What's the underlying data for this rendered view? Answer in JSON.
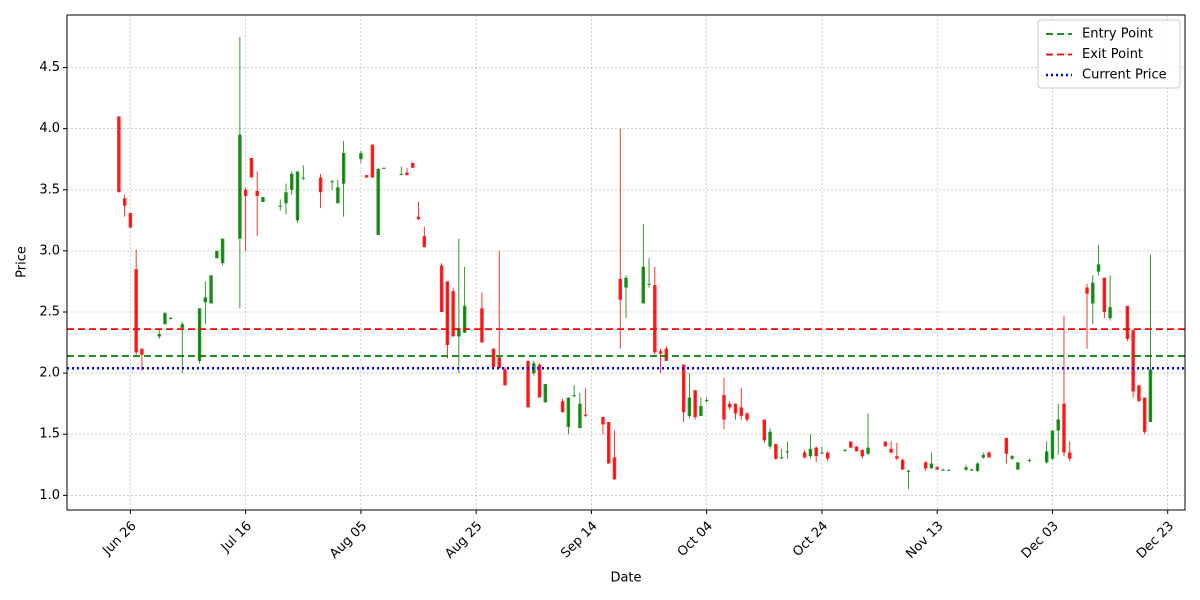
{
  "chart_data": {
    "type": "candlestick",
    "x_label": "Date",
    "y_label": "Price",
    "xlim": [
      "Jun 15",
      "Dec 26"
    ],
    "xticks": [
      "Jun 26",
      "Jul 16",
      "Aug 05",
      "Aug 25",
      "Sep 14",
      "Oct 04",
      "Oct 24",
      "Nov 13",
      "Dec 03",
      "Dec 23"
    ],
    "ylim": [
      0.88,
      4.93
    ],
    "yticks": [
      {
        "value": 1,
        "label": "1.0"
      },
      {
        "value": 1.5,
        "label": "1.5"
      },
      {
        "value": 2,
        "label": "2.0"
      },
      {
        "value": 2.5,
        "label": "2.5"
      },
      {
        "value": 3,
        "label": "3.0"
      },
      {
        "value": 3.5,
        "label": "3.5"
      },
      {
        "value": 4,
        "label": "4.0"
      },
      {
        "value": 4.5,
        "label": "4.5"
      }
    ],
    "grid": true,
    "legend": "upper right",
    "up_color": "green",
    "down_color": "red",
    "x": [
      "Jun 24",
      "Jun 25",
      "Jun 26",
      "Jun 27",
      "Jun 28",
      "Jul 01",
      "Jul 02",
      "Jul 03",
      "Jul 05",
      "Jul 08",
      "Jul 09",
      "Jul 10",
      "Jul 11",
      "Jul 12",
      "Jul 15",
      "Jul 16",
      "Jul 17",
      "Jul 18",
      "Jul 19",
      "Jul 22",
      "Jul 23",
      "Jul 24",
      "Jul 25",
      "Jul 26",
      "Jul 29",
      "Jul 31",
      "Aug 01",
      "Aug 02",
      "Aug 05",
      "Aug 06",
      "Aug 07",
      "Aug 08",
      "Aug 09",
      "Aug 12",
      "Aug 13",
      "Aug 14",
      "Aug 15",
      "Aug 16",
      "Aug 19",
      "Aug 20",
      "Aug 21",
      "Aug 22",
      "Aug 23",
      "Aug 26",
      "Aug 28",
      "Aug 29",
      "Aug 30",
      "Sep 03",
      "Sep 04",
      "Sep 05",
      "Sep 06",
      "Sep 09",
      "Sep 10",
      "Sep 11",
      "Sep 12",
      "Sep 13",
      "Sep 16",
      "Sep 17",
      "Sep 18",
      "Sep 19",
      "Sep 20",
      "Sep 23",
      "Sep 24",
      "Sep 25",
      "Sep 26",
      "Sep 27",
      "Sep 30",
      "Oct 01",
      "Oct 02",
      "Oct 03",
      "Oct 04",
      "Oct 07",
      "Oct 08",
      "Oct 09",
      "Oct 10",
      "Oct 11",
      "Oct 14",
      "Oct 15",
      "Oct 16",
      "Oct 17",
      "Oct 18",
      "Oct 21",
      "Oct 22",
      "Oct 23",
      "Oct 24",
      "Oct 25",
      "Oct 28",
      "Oct 29",
      "Oct 30",
      "Oct 31",
      "Nov 01",
      "Nov 04",
      "Nov 05",
      "Nov 06",
      "Nov 07",
      "Nov 08",
      "Nov 11",
      "Nov 12",
      "Nov 13",
      "Nov 14",
      "Nov 15",
      "Nov 18",
      "Nov 19",
      "Nov 20",
      "Nov 21",
      "Nov 22",
      "Nov 25",
      "Nov 26",
      "Nov 27",
      "Nov 29",
      "Dec 02",
      "Dec 03",
      "Dec 04",
      "Dec 05",
      "Dec 06",
      "Dec 09",
      "Dec 10",
      "Dec 11",
      "Dec 12",
      "Dec 13",
      "Dec 16",
      "Dec 17",
      "Dec 18",
      "Dec 19",
      "Dec 20"
    ],
    "open": [
      4.1,
      3.43,
      3.31,
      2.85,
      2.2,
      2.3,
      2.4,
      2.45,
      2.37,
      2.1,
      2.58,
      2.57,
      2.94,
      2.9,
      3.1,
      3.5,
      3.76,
      3.49,
      3.4,
      3.37,
      3.39,
      3.5,
      3.25,
      3.6,
      3.6,
      3.57,
      3.39,
      3.55,
      3.75,
      3.62,
      3.87,
      3.13,
      3.68,
      3.63,
      3.64,
      3.72,
      3.28,
      3.12,
      2.88,
      2.75,
      2.67,
      2.3,
      2.33,
      2.53,
      2.2,
      2.13,
      2.03,
      2.1,
      2.0,
      2.07,
      1.76,
      1.77,
      1.56,
      1.82,
      1.55,
      1.66,
      1.64,
      1.6,
      1.31,
      2.77,
      2.7,
      2.57,
      2.73,
      2.72,
      2.18,
      2.2,
      2.07,
      1.65,
      1.86,
      1.65,
      1.78,
      1.82,
      1.75,
      1.75,
      1.72,
      1.67,
      1.62,
      1.4,
      1.42,
      1.31,
      1.36,
      1.35,
      1.32,
      1.39,
      1.35,
      1.35,
      1.37,
      1.44,
      1.4,
      1.37,
      1.34,
      1.44,
      1.38,
      1.32,
      1.29,
      1.2,
      1.27,
      1.22,
      1.23,
      1.21,
      1.21,
      1.21,
      1.21,
      1.2,
      1.31,
      1.35,
      1.47,
      1.3,
      1.21,
      1.29,
      1.27,
      1.3,
      1.53,
      1.75,
      1.35,
      2.7,
      2.57,
      2.83,
      2.78,
      2.45,
      2.55,
      2.35,
      1.9,
      1.8,
      1.6
    ],
    "high": [
      4.1,
      3.46,
      3.31,
      3.01,
      2.2,
      2.36,
      2.5,
      2.46,
      2.42,
      2.53,
      2.75,
      2.8,
      3.0,
      3.1,
      4.75,
      3.52,
      3.76,
      3.65,
      3.44,
      3.42,
      3.55,
      3.65,
      3.65,
      3.7,
      3.63,
      3.58,
      3.58,
      3.9,
      3.82,
      3.62,
      3.87,
      3.68,
      3.68,
      3.69,
      3.68,
      3.72,
      3.4,
      3.2,
      2.9,
      2.75,
      2.7,
      3.1,
      2.87,
      2.66,
      2.2,
      3.0,
      2.05,
      2.1,
      2.1,
      2.08,
      1.91,
      1.79,
      1.8,
      1.9,
      1.84,
      1.88,
      1.64,
      1.6,
      1.53,
      4.0,
      2.8,
      3.22,
      2.94,
      2.87,
      2.2,
      2.22,
      2.07,
      2.0,
      1.86,
      1.8,
      1.8,
      1.96,
      1.77,
      1.75,
      1.88,
      1.68,
      1.62,
      1.55,
      1.42,
      1.38,
      1.44,
      1.37,
      1.5,
      1.4,
      1.4,
      1.36,
      1.38,
      1.44,
      1.4,
      1.38,
      1.67,
      1.44,
      1.44,
      1.43,
      1.3,
      1.21,
      1.28,
      1.35,
      1.24,
      1.22,
      1.21,
      1.25,
      1.22,
      1.27,
      1.35,
      1.36,
      1.47,
      1.33,
      1.27,
      1.3,
      1.44,
      1.53,
      1.75,
      2.47,
      1.44,
      2.73,
      2.8,
      3.05,
      2.78,
      2.8,
      2.55,
      2.36,
      1.9,
      1.8,
      2.97
    ],
    "low": [
      3.48,
      3.28,
      3.19,
      2.15,
      2.02,
      2.28,
      2.4,
      2.44,
      2.0,
      2.08,
      2.4,
      2.57,
      2.94,
      2.88,
      2.53,
      3.0,
      3.6,
      3.12,
      3.4,
      3.33,
      3.3,
      3.46,
      3.23,
      3.58,
      3.35,
      3.5,
      3.39,
      3.28,
      3.72,
      3.6,
      3.6,
      3.13,
      3.67,
      3.62,
      3.62,
      3.68,
      3.25,
      3.03,
      2.5,
      2.12,
      2.3,
      2.0,
      2.33,
      2.25,
      2.05,
      2.04,
      1.9,
      1.72,
      1.98,
      1.8,
      1.76,
      1.68,
      1.5,
      1.8,
      1.55,
      1.64,
      1.5,
      1.26,
      1.13,
      2.2,
      2.45,
      2.57,
      2.7,
      2.15,
      2.0,
      2.1,
      1.6,
      1.63,
      1.62,
      1.65,
      1.76,
      1.54,
      1.7,
      1.62,
      1.62,
      1.6,
      1.43,
      1.38,
      1.29,
      1.3,
      1.3,
      1.3,
      1.3,
      1.27,
      1.34,
      1.28,
      1.36,
      1.39,
      1.36,
      1.3,
      1.33,
      1.4,
      1.34,
      1.29,
      1.21,
      1.05,
      1.2,
      1.22,
      1.21,
      1.2,
      1.2,
      1.2,
      1.2,
      1.19,
      1.3,
      1.31,
      1.26,
      1.29,
      1.21,
      1.27,
      1.26,
      1.29,
      1.33,
      1.32,
      1.28,
      2.2,
      2.4,
      2.8,
      2.45,
      2.43,
      2.26,
      1.8,
      1.77,
      1.5,
      1.6
    ],
    "close": [
      3.48,
      3.37,
      3.19,
      2.17,
      2.15,
      2.32,
      2.49,
      2.45,
      2.4,
      2.53,
      2.62,
      2.8,
      3.0,
      3.1,
      3.95,
      3.45,
      3.6,
      3.45,
      3.44,
      3.37,
      3.48,
      3.63,
      3.65,
      3.6,
      3.48,
      3.57,
      3.52,
      3.8,
      3.8,
      3.6,
      3.6,
      3.67,
      3.68,
      3.63,
      3.62,
      3.68,
      3.26,
      3.03,
      2.5,
      2.23,
      2.3,
      2.37,
      2.55,
      2.25,
      2.05,
      2.04,
      1.9,
      1.72,
      2.08,
      1.8,
      1.91,
      1.68,
      1.8,
      1.82,
      1.75,
      1.65,
      1.58,
      1.26,
      1.13,
      2.6,
      2.78,
      2.87,
      2.73,
      2.17,
      2.16,
      2.1,
      1.68,
      1.8,
      1.64,
      1.73,
      1.78,
      1.62,
      1.72,
      1.67,
      1.65,
      1.62,
      1.45,
      1.52,
      1.3,
      1.31,
      1.36,
      1.31,
      1.38,
      1.32,
      1.35,
      1.3,
      1.37,
      1.39,
      1.36,
      1.32,
      1.39,
      1.4,
      1.35,
      1.3,
      1.21,
      1.2,
      1.22,
      1.26,
      1.21,
      1.21,
      1.21,
      1.23,
      1.21,
      1.26,
      1.33,
      1.31,
      1.34,
      1.32,
      1.27,
      1.29,
      1.36,
      1.53,
      1.62,
      1.35,
      1.3,
      2.65,
      2.74,
      2.89,
      2.5,
      2.54,
      2.28,
      1.85,
      1.77,
      1.52,
      2.03
    ],
    "hlines": [
      {
        "name": "Entry Point",
        "value": 2.14,
        "color": "green",
        "style": "dashed"
      },
      {
        "name": "Exit Point",
        "value": 2.36,
        "color": "red",
        "style": "dashed"
      },
      {
        "name": "Current Price",
        "value": 2.04,
        "color": "blue",
        "style": "dotted"
      }
    ]
  }
}
